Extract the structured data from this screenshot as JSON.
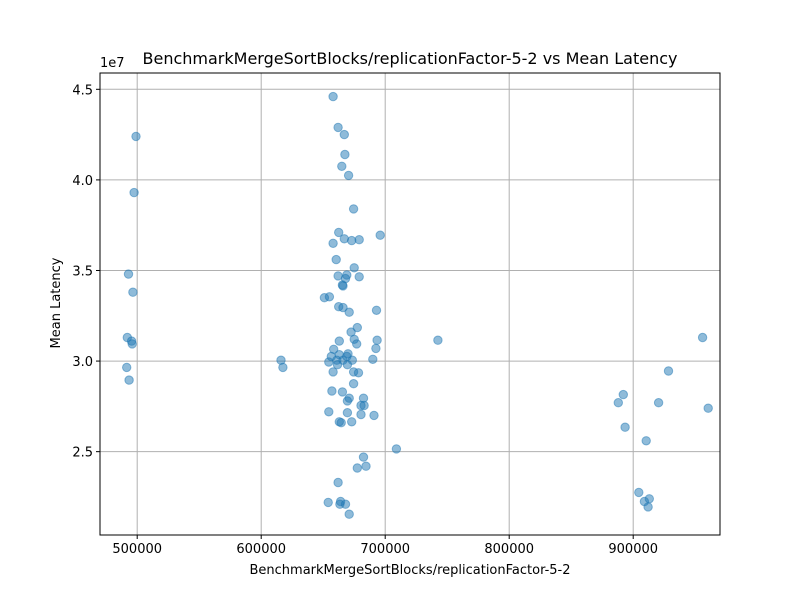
{
  "chart_data": {
    "type": "scatter",
    "title": "BenchmarkMergeSortBlocks/replicationFactor-5-2 vs Mean Latency",
    "xlabel": "BenchmarkMergeSortBlocks/replicationFactor-5-2",
    "ylabel": "Mean Latency",
    "y_offset_text": "1e7",
    "xlim": [
      470000,
      970000
    ],
    "ylim": [
      20400000,
      45900000
    ],
    "xticks": [
      500000,
      600000,
      700000,
      800000,
      900000
    ],
    "xtick_labels": [
      "500000",
      "600000",
      "700000",
      "800000",
      "900000"
    ],
    "yticks": [
      25000000,
      30000000,
      35000000,
      40000000,
      45000000
    ],
    "ytick_labels": [
      "2.5",
      "3.0",
      "3.5",
      "4.0",
      "4.5"
    ],
    "grid": true,
    "marker_color": "#1f77b4",
    "marker_alpha": 0.5,
    "points": [
      [
        499000,
        42400000
      ],
      [
        497500,
        39300000
      ],
      [
        493000,
        34800000
      ],
      [
        496500,
        33800000
      ],
      [
        492000,
        31300000
      ],
      [
        495500,
        31100000
      ],
      [
        496000,
        30950000
      ],
      [
        491500,
        29650000
      ],
      [
        493500,
        28950000
      ],
      [
        616000,
        30050000
      ],
      [
        617500,
        29650000
      ],
      [
        658000,
        44600000
      ],
      [
        662000,
        42900000
      ],
      [
        667000,
        42500000
      ],
      [
        667500,
        41400000
      ],
      [
        665000,
        40750000
      ],
      [
        670500,
        40250000
      ],
      [
        674500,
        38400000
      ],
      [
        662500,
        37100000
      ],
      [
        667000,
        36750000
      ],
      [
        673000,
        36650000
      ],
      [
        679000,
        36700000
      ],
      [
        658000,
        36500000
      ],
      [
        696000,
        36950000
      ],
      [
        660500,
        35600000
      ],
      [
        675000,
        35150000
      ],
      [
        662000,
        34700000
      ],
      [
        669000,
        34750000
      ],
      [
        668000,
        34550000
      ],
      [
        679000,
        34650000
      ],
      [
        665500,
        34200000
      ],
      [
        666000,
        34150000
      ],
      [
        651000,
        33500000
      ],
      [
        655000,
        33550000
      ],
      [
        662500,
        33000000
      ],
      [
        666000,
        32950000
      ],
      [
        671000,
        32700000
      ],
      [
        693000,
        32800000
      ],
      [
        677500,
        31850000
      ],
      [
        672500,
        31600000
      ],
      [
        663000,
        31100000
      ],
      [
        675000,
        31200000
      ],
      [
        677000,
        30950000
      ],
      [
        693500,
        31150000
      ],
      [
        742500,
        31150000
      ],
      [
        658500,
        30650000
      ],
      [
        663000,
        30350000
      ],
      [
        670000,
        30400000
      ],
      [
        692500,
        30700000
      ],
      [
        656500,
        30250000
      ],
      [
        661000,
        30050000
      ],
      [
        666000,
        30050000
      ],
      [
        669000,
        30250000
      ],
      [
        673500,
        30050000
      ],
      [
        654500,
        29950000
      ],
      [
        661500,
        29800000
      ],
      [
        669500,
        29800000
      ],
      [
        674500,
        29400000
      ],
      [
        678500,
        29350000
      ],
      [
        690000,
        30100000
      ],
      [
        658000,
        29400000
      ],
      [
        674500,
        28750000
      ],
      [
        657000,
        28350000
      ],
      [
        665500,
        28300000
      ],
      [
        671000,
        27950000
      ],
      [
        682500,
        27950000
      ],
      [
        669500,
        27800000
      ],
      [
        680500,
        27550000
      ],
      [
        683000,
        27550000
      ],
      [
        654500,
        27200000
      ],
      [
        669500,
        27150000
      ],
      [
        680500,
        27050000
      ],
      [
        691000,
        27000000
      ],
      [
        663000,
        26650000
      ],
      [
        664500,
        26600000
      ],
      [
        673000,
        26650000
      ],
      [
        709000,
        25150000
      ],
      [
        682500,
        24700000
      ],
      [
        677500,
        24100000
      ],
      [
        684500,
        24200000
      ],
      [
        662000,
        23300000
      ],
      [
        654000,
        22200000
      ],
      [
        664000,
        22250000
      ],
      [
        663500,
        22100000
      ],
      [
        668000,
        22100000
      ],
      [
        671000,
        21550000
      ],
      [
        892000,
        28150000
      ],
      [
        888000,
        27700000
      ],
      [
        893500,
        26350000
      ],
      [
        910500,
        25600000
      ],
      [
        920500,
        27700000
      ],
      [
        928500,
        29450000
      ],
      [
        956000,
        31300000
      ],
      [
        960500,
        27400000
      ],
      [
        904500,
        22750000
      ],
      [
        909000,
        22250000
      ],
      [
        913000,
        22400000
      ],
      [
        912000,
        21950000
      ]
    ]
  }
}
